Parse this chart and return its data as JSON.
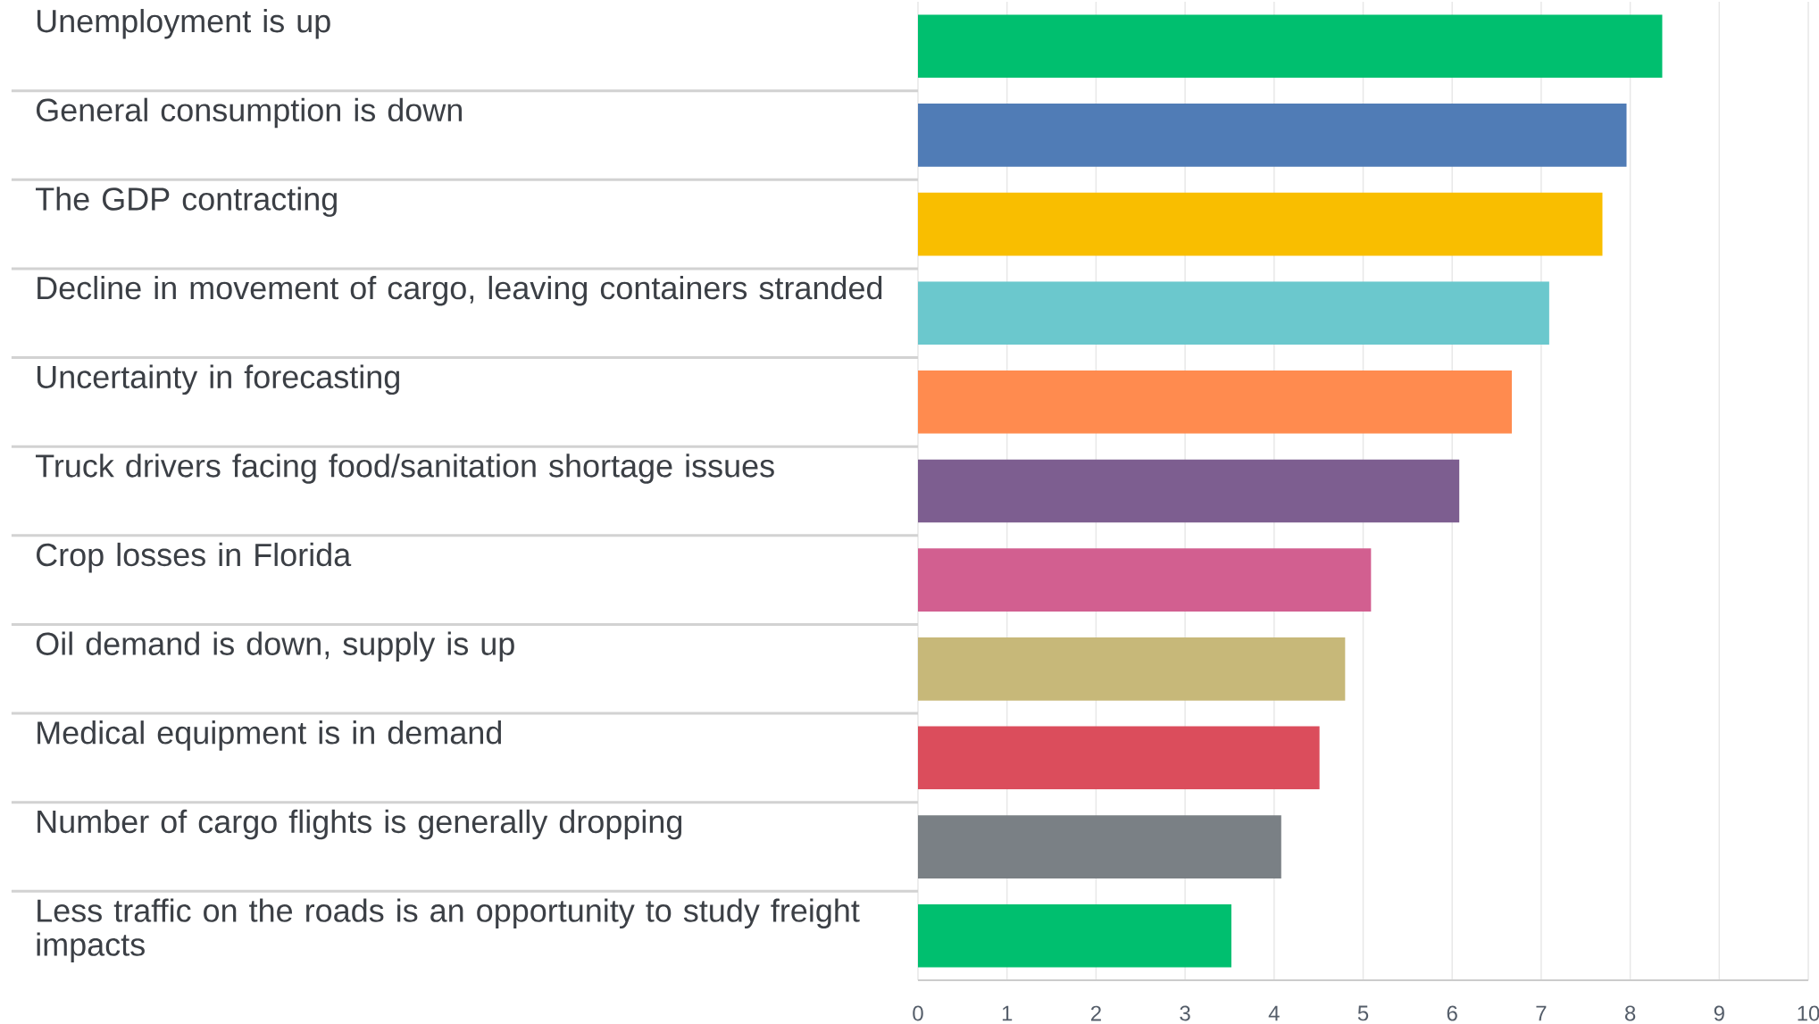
{
  "chart_data": {
    "type": "bar",
    "orientation": "horizontal",
    "categories": [
      "Unemployment is up",
      "General consumption is down",
      "The GDP contracting",
      "Decline in movement of cargo, leaving containers stranded",
      "Uncertainty in forecasting",
      "Truck drivers facing food/sanitation shortage issues",
      "Crop losses in Florida",
      "Oil demand is down, supply is up",
      "Medical equipment is in demand",
      "Number of cargo flights is generally dropping",
      "Less traffic on the roads is an opportunity to study freight impacts"
    ],
    "values": [
      8.36,
      7.96,
      7.69,
      7.09,
      6.67,
      6.08,
      5.09,
      4.8,
      4.51,
      4.08,
      3.52
    ],
    "colors": [
      "#00bf6f",
      "#507cb6",
      "#f9be00",
      "#6bc8cd",
      "#ff8b4f",
      "#7d5e90",
      "#d25f90",
      "#c7b879",
      "#db4d5c",
      "#7a8085",
      "#00bf6f"
    ],
    "xlim": [
      0,
      10
    ],
    "xticks": [
      0,
      1,
      2,
      3,
      4,
      5,
      6,
      7,
      8,
      9,
      10
    ],
    "grid": "x"
  }
}
